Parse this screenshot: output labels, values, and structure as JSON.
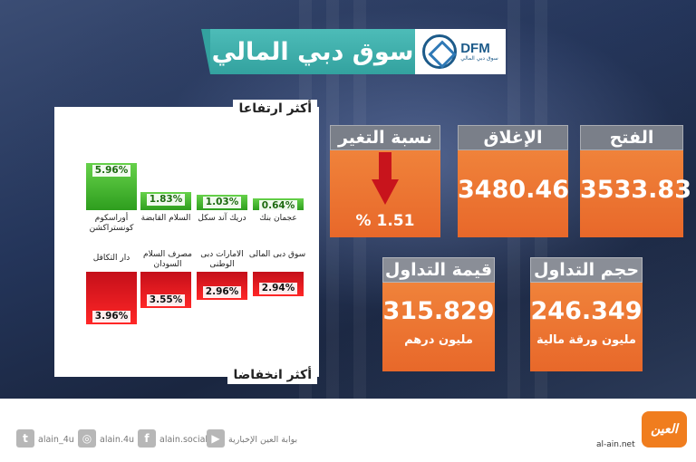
{
  "header": {
    "title": "سوق دبي المالي",
    "logo_text": "DFM",
    "logo_subtext": "سوق دبي المالي"
  },
  "gainers": {
    "title": "أكثر ارتفاعا",
    "items": [
      {
        "name": "أوراسكوم كونستراكشن",
        "value": "5.96%"
      },
      {
        "name": "السلام القابضة",
        "value": "1.83%"
      },
      {
        "name": "دريك آند سكل",
        "value": "1.03%"
      },
      {
        "name": "عجمان بنك",
        "value": "0.64%"
      }
    ]
  },
  "losers": {
    "title": "أكثر انخفاضا",
    "items": [
      {
        "name": "دار التكافل",
        "value": "3.96%"
      },
      {
        "name": "مصرف السلام السودان",
        "value": "3.55%"
      },
      {
        "name": "الامارات دبى الوطنى",
        "value": "2.96%"
      },
      {
        "name": "سوق دبى المالى",
        "value": "2.94%"
      }
    ]
  },
  "stats": {
    "change": {
      "label": "نسبة التغير",
      "value": "% 1.51"
    },
    "close": {
      "label": "الإغلاق",
      "value": "3480.46"
    },
    "open": {
      "label": "الفتح",
      "value": "3533.83"
    },
    "trade_value": {
      "label": "قيمة التداول",
      "value": "315.829",
      "unit": "مليون درهم"
    },
    "trade_volume": {
      "label": "حجم التداول",
      "value": "246.349",
      "unit": "مليون ورقة مالية"
    }
  },
  "footer": {
    "twitter": "alain_4u",
    "instagram": "alain.4u",
    "facebook": "alain.social",
    "youtube": "بوابة العين الإخبارية",
    "site": "al-ain.net",
    "logo": "العين"
  },
  "colors": {
    "accent": "#e8692c",
    "teal": "#33a29f",
    "up": "#2e9e1e",
    "down": "#d0141d"
  }
}
